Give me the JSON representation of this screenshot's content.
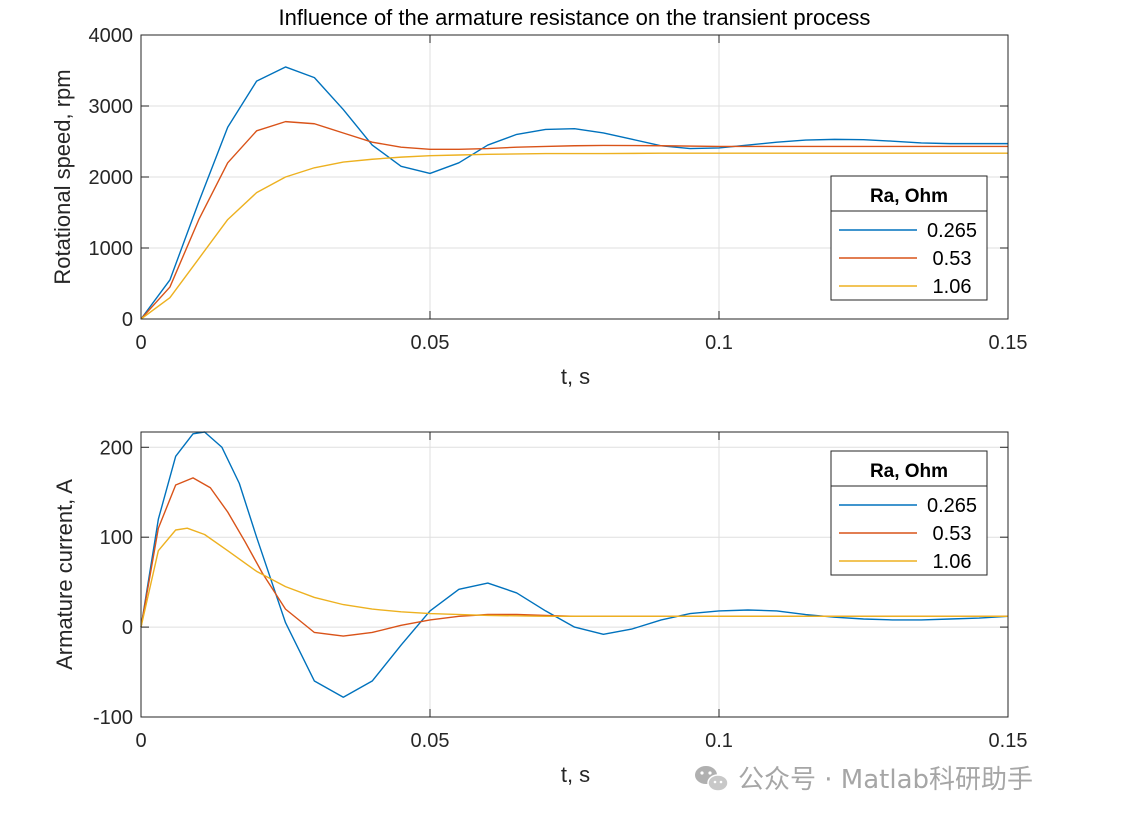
{
  "watermark": {
    "text": "公众号 · Matlab科研助手"
  },
  "chart_data": [
    {
      "type": "line",
      "title": "Influence of the armature resistance on the transient process",
      "xlabel": "t, s",
      "ylabel": "Rotational speed, rpm",
      "xlim": [
        0,
        0.15
      ],
      "ylim": [
        0,
        4000
      ],
      "xticks": [
        "0",
        "0.05",
        "0.1",
        "0.15"
      ],
      "xtick_values": [
        0,
        0.05,
        0.1,
        0.15
      ],
      "yticks": [
        "0",
        "1000",
        "2000",
        "3000",
        "4000"
      ],
      "ytick_values": [
        0,
        1000,
        2000,
        3000,
        4000
      ],
      "grid": true,
      "legend": {
        "title": "Ra, Ohm",
        "placement": "right"
      },
      "series": [
        {
          "name": "0.265",
          "color": "#0072BD",
          "x": [
            0,
            0.005,
            0.01,
            0.015,
            0.02,
            0.025,
            0.03,
            0.035,
            0.04,
            0.045,
            0.05,
            0.055,
            0.06,
            0.065,
            0.07,
            0.075,
            0.08,
            0.085,
            0.09,
            0.095,
            0.1,
            0.105,
            0.11,
            0.115,
            0.12,
            0.125,
            0.13,
            0.135,
            0.14,
            0.145,
            0.15
          ],
          "values": [
            0,
            550,
            1650,
            2700,
            3350,
            3550,
            3400,
            2950,
            2450,
            2150,
            2050,
            2200,
            2450,
            2600,
            2670,
            2680,
            2620,
            2530,
            2440,
            2400,
            2410,
            2450,
            2490,
            2520,
            2530,
            2525,
            2505,
            2480,
            2470,
            2470,
            2470
          ]
        },
        {
          "name": "0.53",
          "color": "#D95319",
          "x": [
            0,
            0.005,
            0.01,
            0.015,
            0.02,
            0.025,
            0.03,
            0.035,
            0.04,
            0.045,
            0.05,
            0.055,
            0.06,
            0.065,
            0.07,
            0.075,
            0.08,
            0.09,
            0.1,
            0.11,
            0.12,
            0.13,
            0.14,
            0.15
          ],
          "values": [
            0,
            450,
            1400,
            2200,
            2650,
            2780,
            2750,
            2620,
            2490,
            2420,
            2390,
            2390,
            2400,
            2420,
            2430,
            2440,
            2445,
            2440,
            2430,
            2430,
            2430,
            2430,
            2430,
            2430
          ]
        },
        {
          "name": "1.06",
          "color": "#EDB120",
          "x": [
            0,
            0.005,
            0.01,
            0.015,
            0.02,
            0.025,
            0.03,
            0.035,
            0.04,
            0.045,
            0.05,
            0.055,
            0.06,
            0.07,
            0.08,
            0.09,
            0.1,
            0.11,
            0.12,
            0.13,
            0.14,
            0.15
          ],
          "values": [
            0,
            300,
            850,
            1400,
            1780,
            2000,
            2130,
            2210,
            2250,
            2280,
            2300,
            2310,
            2320,
            2330,
            2330,
            2335,
            2335,
            2335,
            2335,
            2335,
            2335,
            2335
          ]
        }
      ]
    },
    {
      "type": "line",
      "title": "",
      "xlabel": "t, s",
      "ylabel": "Armature current, A",
      "xlim": [
        0,
        0.15
      ],
      "ylim": [
        -100,
        217
      ],
      "xticks": [
        "0",
        "0.05",
        "0.1",
        "0.15"
      ],
      "xtick_values": [
        0,
        0.05,
        0.1,
        0.15
      ],
      "yticks": [
        "-100",
        "0",
        "100",
        "200"
      ],
      "ytick_values": [
        -100,
        0,
        100,
        200
      ],
      "grid": true,
      "legend": {
        "title": "Ra, Ohm",
        "placement": "top-right"
      },
      "series": [
        {
          "name": "0.265",
          "color": "#0072BD",
          "x": [
            0,
            0.003,
            0.006,
            0.009,
            0.011,
            0.014,
            0.017,
            0.02,
            0.025,
            0.03,
            0.035,
            0.04,
            0.045,
            0.05,
            0.055,
            0.06,
            0.065,
            0.07,
            0.075,
            0.08,
            0.085,
            0.09,
            0.095,
            0.1,
            0.105,
            0.11,
            0.115,
            0.12,
            0.125,
            0.13,
            0.135,
            0.14,
            0.145,
            0.15
          ],
          "values": [
            0,
            120,
            190,
            215,
            217,
            200,
            160,
            100,
            5,
            -60,
            -78,
            -60,
            -20,
            18,
            42,
            49,
            38,
            18,
            0,
            -8,
            -2,
            8,
            15,
            18,
            19,
            18,
            14,
            11,
            9,
            8,
            8,
            9,
            10,
            12
          ]
        },
        {
          "name": "0.53",
          "color": "#D95319",
          "x": [
            0,
            0.003,
            0.006,
            0.009,
            0.012,
            0.015,
            0.018,
            0.021,
            0.025,
            0.03,
            0.035,
            0.04,
            0.045,
            0.05,
            0.055,
            0.06,
            0.065,
            0.07,
            0.075,
            0.08,
            0.09,
            0.1,
            0.11,
            0.12,
            0.13,
            0.14,
            0.15
          ],
          "values": [
            0,
            110,
            158,
            166,
            155,
            128,
            95,
            60,
            20,
            -6,
            -10,
            -6,
            2,
            8,
            12,
            14,
            14,
            13,
            12,
            12,
            12,
            12,
            12,
            12,
            12,
            12,
            12
          ]
        },
        {
          "name": "1.06",
          "color": "#EDB120",
          "x": [
            0,
            0.003,
            0.006,
            0.008,
            0.011,
            0.015,
            0.02,
            0.025,
            0.03,
            0.035,
            0.04,
            0.045,
            0.05,
            0.06,
            0.07,
            0.08,
            0.09,
            0.1,
            0.11,
            0.12,
            0.13,
            0.14,
            0.15
          ],
          "values": [
            0,
            85,
            108,
            110,
            103,
            85,
            62,
            45,
            33,
            25,
            20,
            17,
            15,
            13,
            12,
            12,
            12,
            12,
            12,
            12,
            12,
            12,
            12
          ]
        }
      ]
    }
  ]
}
